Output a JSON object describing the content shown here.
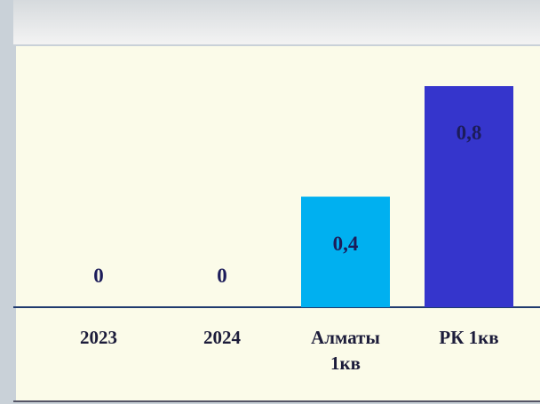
{
  "chart_data": {
    "type": "bar",
    "categories": [
      "2023",
      "2024",
      "Алматы\n1кв",
      "РК 1кв"
    ],
    "values": [
      0,
      0,
      0.4,
      0.8
    ],
    "value_labels": [
      "0",
      "0",
      "0,4",
      "0,8"
    ],
    "colors": [
      "#00b0f0",
      "#00b0f0",
      "#00b0f0",
      "#3535cc"
    ]
  }
}
